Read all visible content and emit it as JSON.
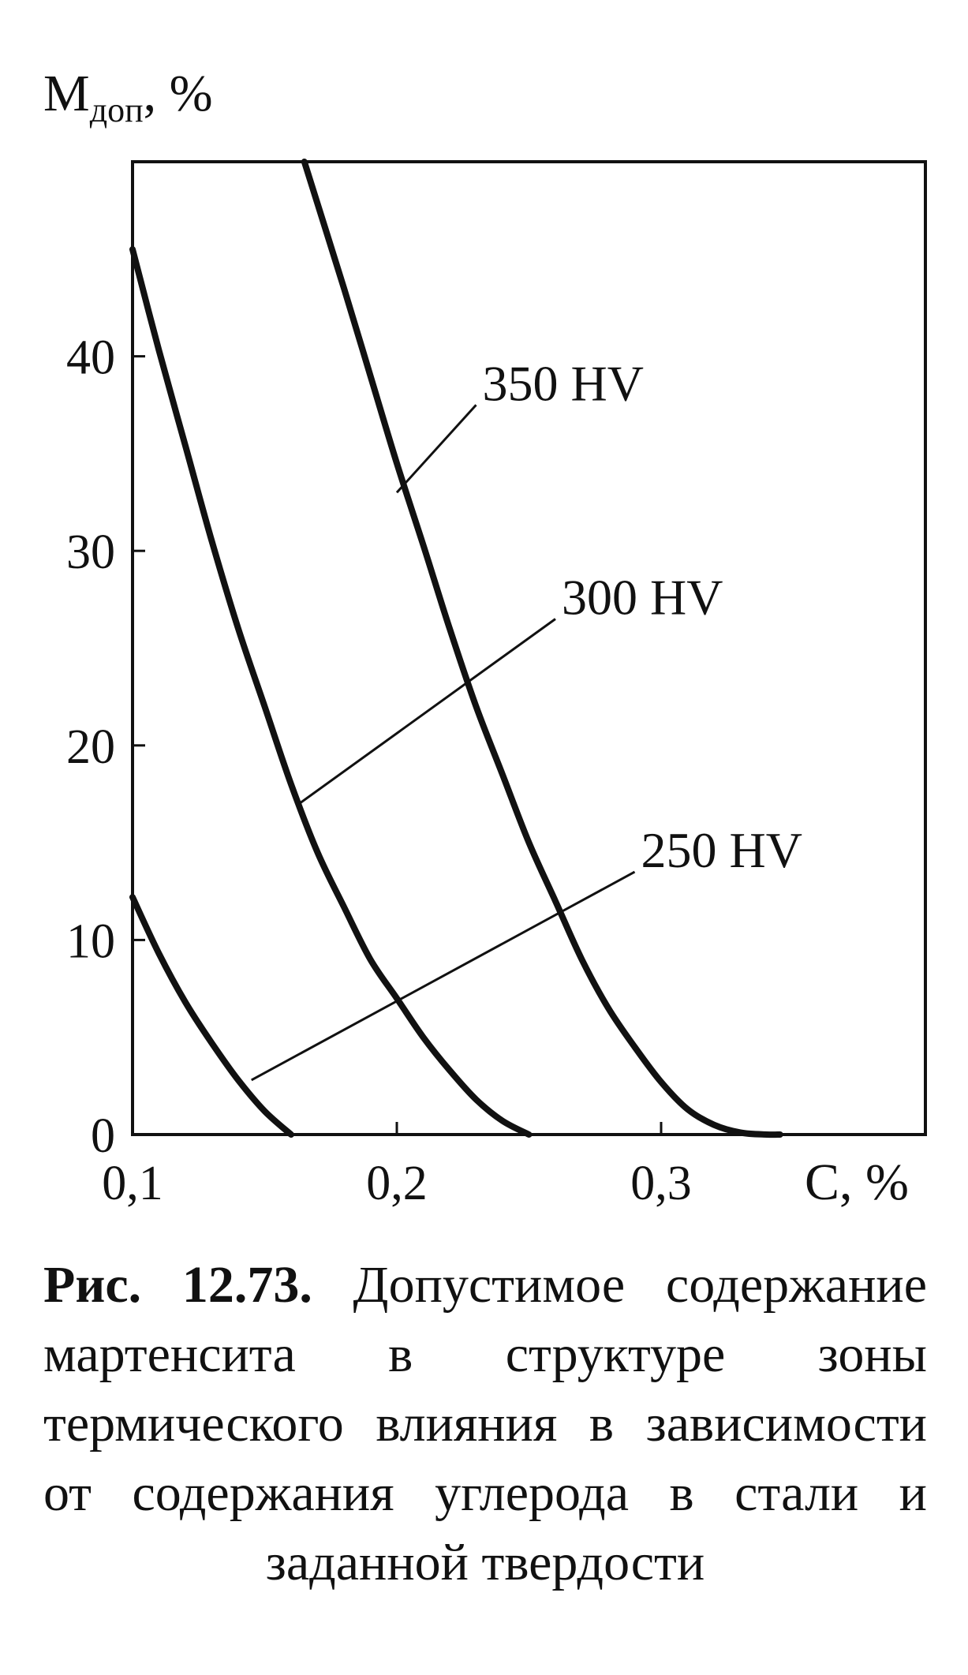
{
  "chart_data": {
    "type": "line",
    "title": "",
    "ylabel_main": "M",
    "ylabel_sub": "доп",
    "ylabel_suffix": ", %",
    "xlabel": "C, %",
    "xlim": [
      0.1,
      0.4
    ],
    "ylim": [
      0,
      50
    ],
    "xticks": [
      {
        "value": 0.1,
        "label": "0,1"
      },
      {
        "value": 0.2,
        "label": "0,2"
      },
      {
        "value": 0.3,
        "label": "0,3"
      }
    ],
    "yticks": [
      {
        "value": 0,
        "label": "0"
      },
      {
        "value": 10,
        "label": "10"
      },
      {
        "value": 20,
        "label": "20"
      },
      {
        "value": 30,
        "label": "30"
      },
      {
        "value": 40,
        "label": "40"
      }
    ],
    "grid": false,
    "series": [
      {
        "name": "250 HV",
        "x": [
          0.1,
          0.11,
          0.12,
          0.13,
          0.14,
          0.15,
          0.16
        ],
        "y": [
          12.2,
          9.3,
          6.8,
          4.7,
          2.8,
          1.2,
          0
        ],
        "label_at": [
          0.145,
          2.8
        ],
        "label_text_at": [
          0.29,
          13.5
        ]
      },
      {
        "name": "300 HV",
        "x": [
          0.1,
          0.11,
          0.12,
          0.13,
          0.14,
          0.15,
          0.16,
          0.17,
          0.18,
          0.19,
          0.2,
          0.21,
          0.22,
          0.23,
          0.24,
          0.25
        ],
        "y": [
          45.5,
          40.3,
          35.4,
          30.5,
          26.0,
          22.0,
          18.0,
          14.5,
          11.7,
          9.0,
          7.0,
          5.0,
          3.3,
          1.8,
          0.7,
          0
        ],
        "label_at": [
          0.163,
          17.0
        ],
        "label_text_at": [
          0.26,
          26.5
        ]
      },
      {
        "name": "350 HV",
        "x": [
          0.165,
          0.18,
          0.19,
          0.2,
          0.21,
          0.22,
          0.23,
          0.24,
          0.25,
          0.26,
          0.27,
          0.28,
          0.29,
          0.3,
          0.31,
          0.32,
          0.33,
          0.34,
          0.345
        ],
        "y": [
          50.0,
          43.5,
          39.0,
          34.5,
          30.3,
          26.0,
          22.0,
          18.5,
          15.0,
          12.0,
          9.0,
          6.5,
          4.5,
          2.7,
          1.3,
          0.5,
          0.1,
          0,
          0
        ],
        "label_at": [
          0.2,
          33.0
        ],
        "label_text_at": [
          0.23,
          37.5
        ]
      }
    ]
  },
  "caption": {
    "label": "Рис. 12.73.",
    "text": "Допустимое содержание мартенсита в структуре зоны термического влияния в зависимости от содержания углерода в стали и заданной твердости"
  }
}
